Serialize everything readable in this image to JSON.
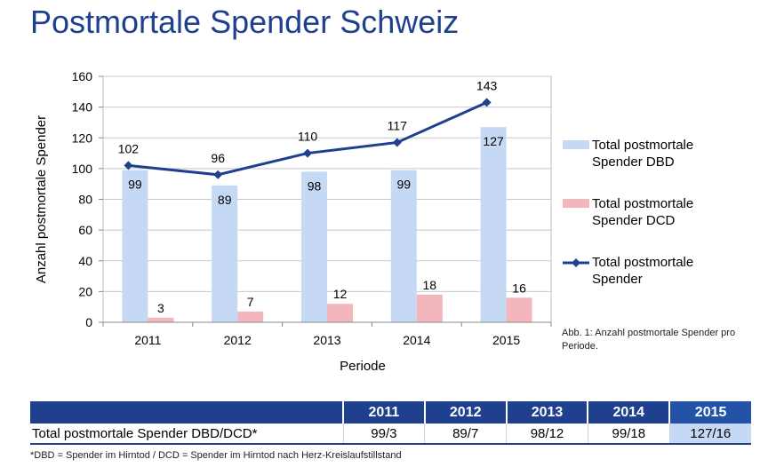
{
  "page": {
    "title": "Postmortale Spender Schweiz",
    "caption": "Abb. 1: Anzahl postmortale Spender pro Periode.",
    "footnote": "*DBD = Spender im Hirntod  / DCD = Spender im Hirntod nach Herz-Kreislaufstillstand"
  },
  "chart_data": {
    "type": "bar",
    "categories": [
      "2011",
      "2012",
      "2013",
      "2014",
      "2015"
    ],
    "series": [
      {
        "name": "Total postmortale Spender  DBD",
        "kind": "bar",
        "color": "#c6d9f4",
        "values": [
          99,
          89,
          98,
          99,
          127
        ]
      },
      {
        "name": "Total postmortale Spender  DCD",
        "kind": "bar",
        "color": "#f2b6bc",
        "values": [
          3,
          7,
          12,
          18,
          16
        ]
      },
      {
        "name": "Total postmortale Spender",
        "kind": "line",
        "color": "#1f3f8f",
        "values": [
          102,
          96,
          110,
          117,
          143
        ]
      }
    ],
    "xlabel": "Periode",
    "ylabel": "Anzahl postmortale Spender",
    "ylim": [
      0,
      160
    ],
    "yticks": [
      0,
      20,
      40,
      60,
      80,
      100,
      120,
      140,
      160
    ],
    "grid": true,
    "legend_position": "right"
  },
  "table": {
    "row_label": "Total postmortale Spender  DBD/DCD*",
    "years": [
      "2011",
      "2012",
      "2013",
      "2014",
      "2015"
    ],
    "values": [
      "99/3",
      "89/7",
      "98/12",
      "99/18",
      "127/16"
    ]
  }
}
